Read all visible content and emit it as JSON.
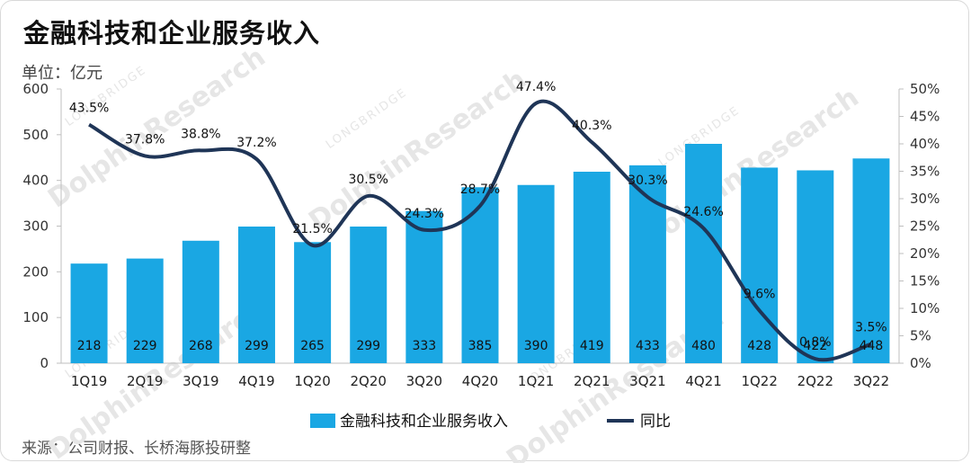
{
  "title": "金融科技和企业服务收入",
  "unit": "单位：亿元",
  "source": "来源：公司财报、长桥海豚投研整",
  "watermark": {
    "main": "DolphinResearch",
    "sub": "LONGBRIDGE"
  },
  "colors": {
    "bar": "#1aa7e3",
    "line": "#1f3557",
    "axis": "#bfbfbf"
  },
  "chart_data": {
    "type": "bar",
    "categories": [
      "1Q19",
      "2Q19",
      "3Q19",
      "4Q19",
      "1Q20",
      "2Q20",
      "3Q20",
      "4Q20",
      "1Q21",
      "2Q21",
      "3Q21",
      "4Q21",
      "1Q22",
      "2Q22",
      "3Q22"
    ],
    "series": [
      {
        "name": "金融科技和企业服务收入",
        "type": "bar",
        "axis": "left",
        "values": [
          218,
          229,
          268,
          299,
          265,
          299,
          333,
          385,
          390,
          419,
          433,
          480,
          428,
          422,
          448
        ],
        "labels": [
          "218",
          "229",
          "268",
          "299",
          "265",
          "299",
          "333",
          "385",
          "390",
          "419",
          "433",
          "480",
          "428",
          "422",
          "448"
        ]
      },
      {
        "name": "同比",
        "type": "line",
        "axis": "right",
        "values": [
          43.5,
          37.8,
          38.8,
          37.2,
          21.5,
          30.5,
          24.3,
          28.7,
          47.4,
          40.3,
          30.3,
          24.6,
          9.6,
          0.8,
          3.5
        ],
        "labels": [
          "43.5%",
          "37.8%",
          "38.8%",
          "37.2%",
          "21.5%",
          "30.5%",
          "24.3%",
          "28.7%",
          "47.4%",
          "40.3%",
          "30.3%",
          "24.6%",
          "9.6%",
          "0.8%",
          "3.5%"
        ]
      }
    ],
    "y_left": {
      "min": 0,
      "max": 600,
      "ticks": [
        "0",
        "100",
        "200",
        "300",
        "400",
        "500",
        "600"
      ]
    },
    "y_right": {
      "min": 0,
      "max": 50,
      "ticks": [
        "0%",
        "5%",
        "10%",
        "15%",
        "20%",
        "25%",
        "30%",
        "35%",
        "40%",
        "45%",
        "50%"
      ]
    },
    "legend": "bottom",
    "grid": false
  }
}
